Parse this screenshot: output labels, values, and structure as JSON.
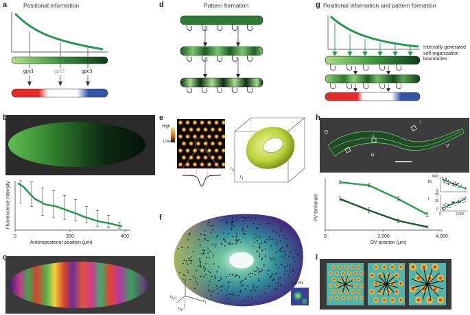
{
  "panels": {
    "a": {
      "letter": "a",
      "title": "Positional information",
      "genes": [
        "gpc1",
        "gpc2",
        "gpc3"
      ],
      "gene_colors": [
        "#d8232a",
        "#9a9a9a",
        "#3553a7"
      ]
    },
    "b": {
      "letter": "b"
    },
    "c": {
      "letter": "c"
    },
    "d": {
      "letter": "d",
      "title": "Pattern formation"
    },
    "e": {
      "letter": "e",
      "high": "High",
      "low": "Low",
      "axis_r1": "r",
      "axis_r2": "r",
      "axis_r3": "r"
    },
    "f": {
      "letter": "f",
      "freq": "5.8 Hz",
      "axis_r1": "r",
      "axis_r2": "r",
      "axis_rN1": "r",
      "axis_rN": "r"
    },
    "g": {
      "letter": "g",
      "title": "Positional information and pattern formation",
      "note": "Internally generated self-organization boundaries"
    },
    "h": {
      "letter": "h",
      "d_label": "D",
      "v_label": "V",
      "i_label": "i",
      "ii_label": "ii",
      "iii_label": "iii"
    },
    "i": {
      "letter": "i"
    }
  },
  "chart_data": [
    {
      "type": "line",
      "panel": "b",
      "xlabel": "Anteroposterior position (µm)",
      "ylabel": "Fluorescence intensity",
      "xticks": [
        "0",
        "200",
        "400"
      ],
      "xlim": [
        0,
        420
      ],
      "x": [
        10,
        30,
        50,
        70,
        90,
        110,
        130,
        150,
        170,
        190,
        210,
        230,
        250,
        270,
        290,
        310,
        330,
        350,
        370,
        390
      ],
      "y": [
        0.95,
        0.88,
        0.76,
        0.64,
        0.58,
        0.52,
        0.5,
        0.48,
        0.44,
        0.4,
        0.36,
        0.32,
        0.27,
        0.24,
        0.2,
        0.17,
        0.15,
        0.13,
        0.1,
        0.08
      ],
      "errorbar_x": [
        20,
        60,
        100,
        140,
        180,
        220,
        260,
        300,
        340,
        380
      ],
      "errorbar_low": [
        0.55,
        0.48,
        0.3,
        0.25,
        0.22,
        0.2,
        0.15,
        0.08,
        0.05,
        0.04
      ],
      "errorbar_high": [
        1.0,
        0.98,
        0.86,
        0.8,
        0.7,
        0.62,
        0.48,
        0.4,
        0.3,
        0.16
      ],
      "color": "#1f9a4a"
    },
    {
      "type": "line",
      "panel": "h",
      "xlabel": "DV position (µm)",
      "ylabel": "PV terminals",
      "xticks": [
        "0",
        "2,000",
        "4,000"
      ],
      "xlim": [
        0,
        4000
      ],
      "x": [
        500,
        1500,
        2500,
        3500
      ],
      "series": [
        {
          "values": [
            0.92,
            0.86,
            0.6,
            0.3
          ],
          "color": "#2aa24d"
        },
        {
          "values": [
            0.6,
            0.38,
            0.18,
            0.06
          ],
          "color": "#1a5a2c"
        }
      ],
      "err": [
        [
          0.03,
          0.03,
          0.04,
          0.04
        ],
        [
          0.04,
          0.05,
          0.03,
          0.02
        ]
      ]
    },
    {
      "type": "scatter",
      "panel": "h-inset",
      "xticks": [
        "0",
        "2,000"
      ],
      "top_ylabel": "th",
      "bottom_ylabel": "r",
      "top_yticks": [
        "600",
        "0"
      ],
      "bottom_yticks": [
        "40",
        "20",
        "0"
      ]
    }
  ]
}
